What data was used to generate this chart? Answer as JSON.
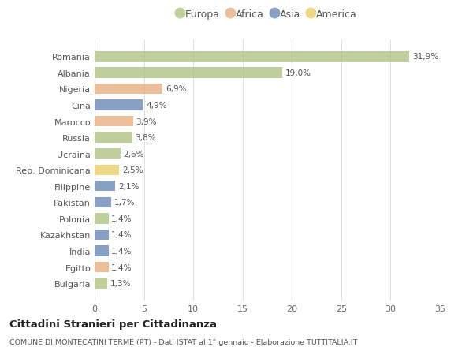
{
  "countries": [
    "Romania",
    "Albania",
    "Nigeria",
    "Cina",
    "Marocco",
    "Russia",
    "Ucraina",
    "Rep. Dominicana",
    "Filippine",
    "Pakistan",
    "Polonia",
    "Kazakhstan",
    "India",
    "Egitto",
    "Bulgaria"
  ],
  "values": [
    31.9,
    19.0,
    6.9,
    4.9,
    3.9,
    3.8,
    2.6,
    2.5,
    2.1,
    1.7,
    1.4,
    1.4,
    1.4,
    1.4,
    1.3
  ],
  "labels": [
    "31,9%",
    "19,0%",
    "6,9%",
    "4,9%",
    "3,9%",
    "3,8%",
    "2,6%",
    "2,5%",
    "2,1%",
    "1,7%",
    "1,4%",
    "1,4%",
    "1,4%",
    "1,4%",
    "1,3%"
  ],
  "continents": [
    "Europa",
    "Europa",
    "Africa",
    "Asia",
    "Africa",
    "Europa",
    "Europa",
    "America",
    "Asia",
    "Asia",
    "Europa",
    "Asia",
    "Asia",
    "Africa",
    "Europa"
  ],
  "colors": {
    "Europa": "#a8c07a",
    "Africa": "#e8a878",
    "Asia": "#6080b0",
    "America": "#e8cc60"
  },
  "legend_order": [
    "Europa",
    "Africa",
    "Asia",
    "America"
  ],
  "title": "Cittadini Stranieri per Cittadinanza",
  "subtitle": "COMUNE DI MONTECATINI TERME (PT) - Dati ISTAT al 1° gennaio - Elaborazione TUTTITALIA.IT",
  "xlim": [
    0,
    35
  ],
  "xticks": [
    0,
    5,
    10,
    15,
    20,
    25,
    30,
    35
  ],
  "background_color": "#ffffff",
  "plot_background": "#ffffff",
  "grid_color": "#e0e0e0",
  "bar_alpha": 0.75,
  "bar_height": 0.65
}
